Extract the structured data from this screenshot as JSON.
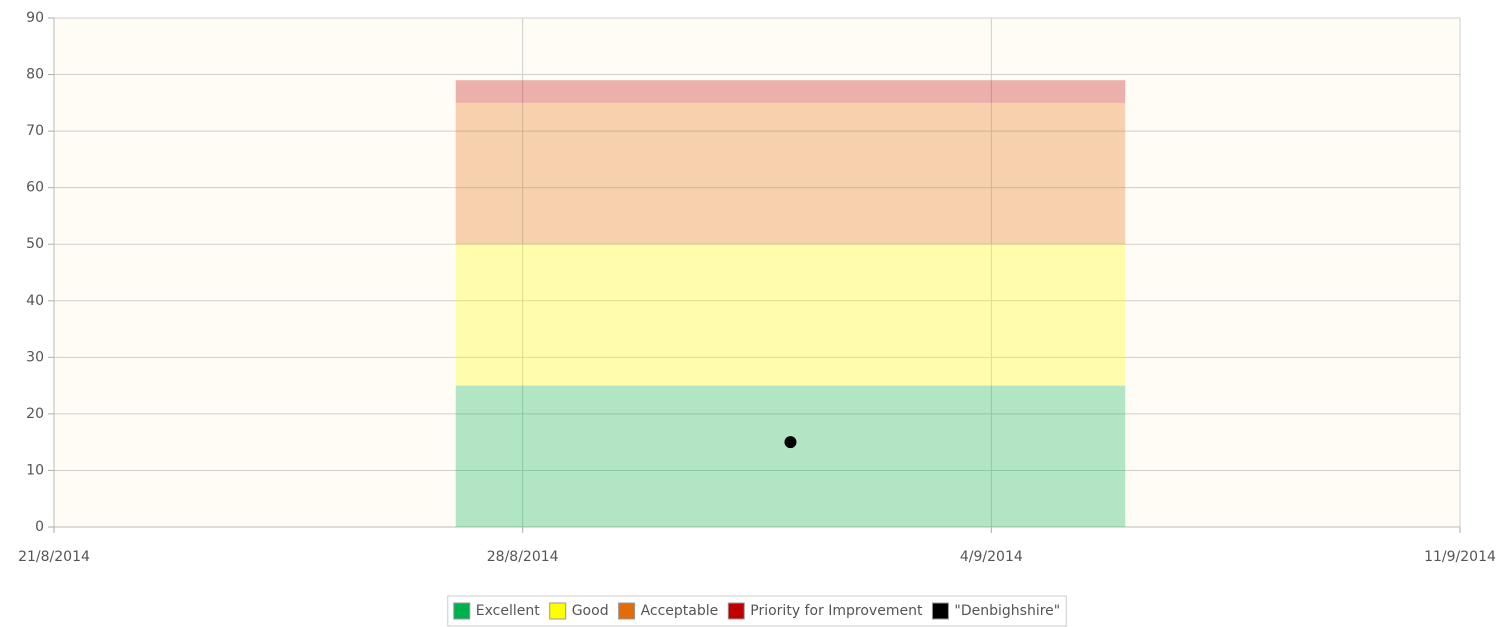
{
  "chart_data": {
    "type": "bar",
    "stacked": true,
    "xlim": [
      "21/8/2014",
      "11/9/2014"
    ],
    "xticks": [
      "21/8/2014",
      "28/8/2014",
      "4/9/2014",
      "11/9/2014"
    ],
    "ylim": [
      0,
      90
    ],
    "yticks": [
      0,
      10,
      20,
      30,
      40,
      50,
      60,
      70,
      80,
      90
    ],
    "grid": true,
    "bar_span": [
      "27/8/2014",
      "6/9/2014"
    ],
    "band_opacity": 0.3,
    "series": [
      {
        "name": "Excellent",
        "color": "#00b050",
        "values": [
          25
        ]
      },
      {
        "name": "Good",
        "color": "#ffff00",
        "values": [
          25
        ]
      },
      {
        "name": "Acceptable",
        "color": "#e36c09",
        "values": [
          25
        ]
      },
      {
        "name": "Priority for Improvement",
        "color": "#c00000",
        "values": [
          4
        ]
      },
      {
        "name": "\"Denbighshire\"",
        "color": "#000000",
        "type": "scatter",
        "x": [
          "1/9/2014"
        ],
        "values": [
          15
        ]
      }
    ],
    "legend": "bottom"
  }
}
